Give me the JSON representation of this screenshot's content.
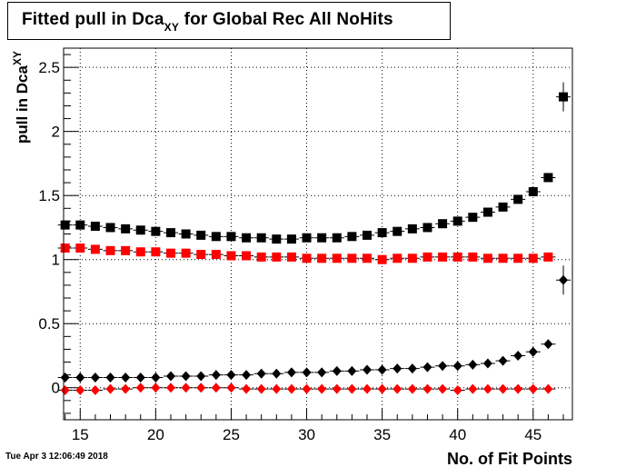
{
  "header": {
    "title_main": "Fitted pull in Dca",
    "title_sub": "XY",
    "title_tail": " for Global Rec All NoHits"
  },
  "footer": {
    "timestamp": "Tue Apr  3 12:06:49 2018"
  },
  "chart_data": {
    "type": "scatter",
    "title": "Fitted pull in DcaXY for Global Rec All NoHits",
    "xlabel": "No. of Fit Points",
    "ylabel_main": "pull in Dca",
    "ylabel_sub": "XY",
    "xlim": [
      13.9,
      47.6
    ],
    "ylim": [
      -0.25,
      2.65
    ],
    "xticks": [
      15,
      20,
      25,
      30,
      35,
      40,
      45
    ],
    "yticks": [
      0,
      0.5,
      1,
      1.5,
      2,
      2.5
    ],
    "ytick_labels": [
      "0",
      "0.5",
      "1",
      "1.5",
      "2",
      "2.5"
    ],
    "grid": true,
    "series": [
      {
        "marker": "square",
        "color": "#000000",
        "x": [
          14,
          15,
          16,
          17,
          18,
          19,
          20,
          21,
          22,
          23,
          24,
          25,
          26,
          27,
          28,
          29,
          30,
          31,
          32,
          33,
          34,
          35,
          36,
          37,
          38,
          39,
          40,
          41,
          42,
          43,
          44,
          45,
          46,
          47
        ],
        "y": [
          1.27,
          1.27,
          1.26,
          1.25,
          1.24,
          1.23,
          1.22,
          1.21,
          1.2,
          1.19,
          1.18,
          1.18,
          1.17,
          1.17,
          1.16,
          1.16,
          1.17,
          1.17,
          1.17,
          1.18,
          1.19,
          1.21,
          1.22,
          1.24,
          1.25,
          1.28,
          1.3,
          1.33,
          1.37,
          1.41,
          1.47,
          1.53,
          1.64,
          2.27
        ]
      },
      {
        "marker": "square",
        "color": "#ff0000",
        "x": [
          14,
          15,
          16,
          17,
          18,
          19,
          20,
          21,
          22,
          23,
          24,
          25,
          26,
          27,
          28,
          29,
          30,
          31,
          32,
          33,
          34,
          35,
          36,
          37,
          38,
          39,
          40,
          41,
          42,
          43,
          44,
          45,
          46
        ],
        "y": [
          1.09,
          1.09,
          1.08,
          1.07,
          1.07,
          1.06,
          1.06,
          1.05,
          1.05,
          1.04,
          1.04,
          1.03,
          1.03,
          1.02,
          1.02,
          1.02,
          1.01,
          1.01,
          1.01,
          1.01,
          1.01,
          1.0,
          1.01,
          1.01,
          1.02,
          1.02,
          1.02,
          1.02,
          1.01,
          1.01,
          1.01,
          1.01,
          1.02
        ]
      },
      {
        "marker": "diamond",
        "color": "#000000",
        "x": [
          14,
          15,
          16,
          17,
          18,
          19,
          20,
          21,
          22,
          23,
          24,
          25,
          26,
          27,
          28,
          29,
          30,
          31,
          32,
          33,
          34,
          35,
          36,
          37,
          38,
          39,
          40,
          41,
          42,
          43,
          44,
          45,
          46,
          47
        ],
        "y": [
          0.08,
          0.08,
          0.08,
          0.08,
          0.08,
          0.08,
          0.08,
          0.09,
          0.09,
          0.09,
          0.1,
          0.1,
          0.1,
          0.11,
          0.11,
          0.12,
          0.12,
          0.12,
          0.13,
          0.13,
          0.14,
          0.14,
          0.15,
          0.15,
          0.16,
          0.17,
          0.17,
          0.18,
          0.19,
          0.21,
          0.25,
          0.28,
          0.34,
          0.84
        ]
      },
      {
        "marker": "diamond",
        "color": "#ff0000",
        "x": [
          14,
          15,
          16,
          17,
          18,
          19,
          20,
          21,
          22,
          23,
          24,
          25,
          26,
          27,
          28,
          29,
          30,
          31,
          32,
          33,
          34,
          35,
          36,
          37,
          38,
          39,
          40,
          41,
          42,
          43,
          44,
          45,
          46
        ],
        "y": [
          -0.02,
          -0.02,
          -0.02,
          -0.01,
          -0.01,
          0.0,
          0.0,
          0.0,
          0.0,
          0.0,
          0.0,
          0.0,
          -0.01,
          -0.01,
          -0.01,
          -0.01,
          -0.01,
          -0.01,
          -0.01,
          -0.01,
          -0.01,
          -0.01,
          -0.01,
          -0.01,
          -0.01,
          -0.01,
          -0.02,
          -0.01,
          -0.01,
          -0.01,
          -0.01,
          -0.01,
          -0.01
        ]
      }
    ]
  }
}
